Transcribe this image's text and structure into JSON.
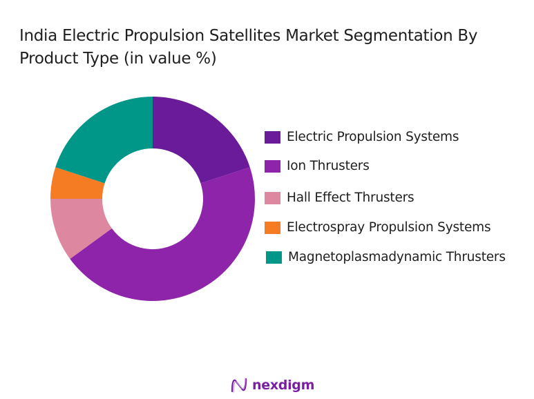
{
  "header": {
    "title_line1": "India Electric Propulsion Satellites Market Segmentation By",
    "title_line2": "Product Type (in value %)"
  },
  "legend": {
    "items": [
      {
        "label": "Electric Propulsion Systems",
        "color": "#6a1b9a"
      },
      {
        "label": " Ion Thrusters",
        "color": "#8e24aa"
      },
      {
        "label": " Hall Effect Thrusters",
        "color": "#de87a0"
      },
      {
        "label": "Electrospray Propulsion Systems",
        "color": "#f57c22"
      },
      {
        "label": "Magnetoplasmadynamic Thrusters",
        "color": "#009688"
      }
    ]
  },
  "brand": {
    "name": "nexdigm",
    "icon": "nexdigm-wave-logo-icon"
  },
  "chart_data": {
    "type": "pie",
    "subtype": "donut",
    "title": "India Electric Propulsion Satellites Market Segmentation By Product Type (in value %)",
    "categories": [
      "Electric Propulsion Systems",
      "Ion Thrusters",
      "Hall Effect Thrusters",
      "Electrospray Propulsion Systems",
      "Magnetoplasmadynamic Thrusters"
    ],
    "values": [
      20,
      45,
      10,
      5,
      20
    ],
    "colors": [
      "#6a1b9a",
      "#8e24aa",
      "#de87a0",
      "#f57c22",
      "#009688"
    ],
    "start_angle": "12 o'clock",
    "direction": "clockwise",
    "legend_position": "right",
    "data_labels": false,
    "unit": "%"
  }
}
